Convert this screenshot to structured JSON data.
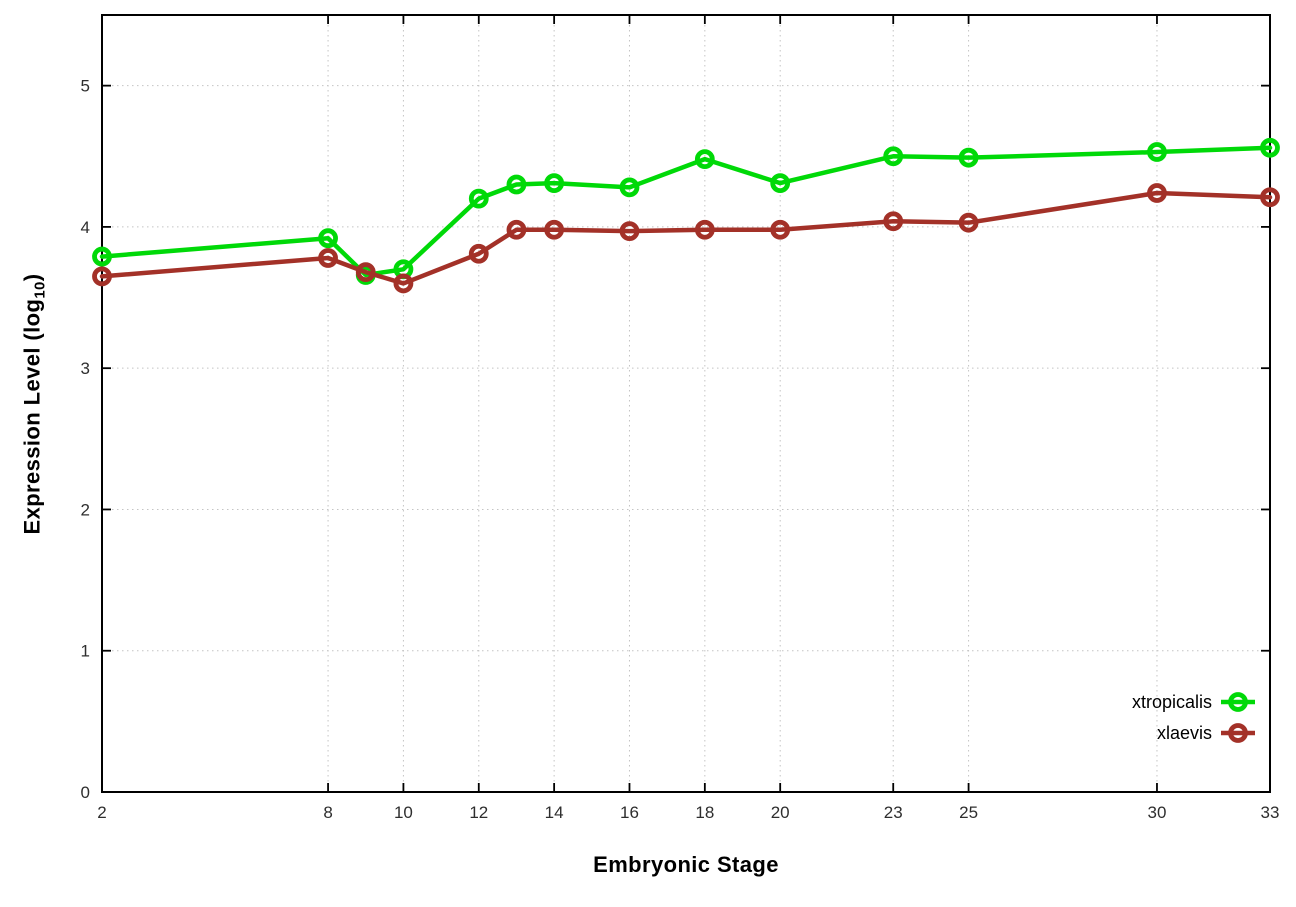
{
  "chart_data": {
    "type": "line",
    "title": "",
    "xlabel": "Embryonic Stage",
    "ylabel_prefix": "Expression Level (log",
    "ylabel_sub": "10",
    "ylabel_suffix": ")",
    "x": [
      2,
      8,
      9,
      10,
      12,
      13,
      14,
      16,
      18,
      20,
      23,
      25,
      30,
      33
    ],
    "xticks": [
      2,
      8,
      10,
      12,
      14,
      16,
      18,
      20,
      23,
      25,
      30,
      33
    ],
    "yticks": [
      0,
      1,
      2,
      3,
      4,
      5
    ],
    "xlim": [
      2,
      33
    ],
    "ylim": [
      0,
      5.5
    ],
    "grid": true,
    "legend_position": "bottom-right",
    "series": [
      {
        "name": "xtropicalis",
        "color": "#00d908",
        "values": [
          3.79,
          3.92,
          3.66,
          3.7,
          4.2,
          4.3,
          4.31,
          4.28,
          4.48,
          4.31,
          4.5,
          4.49,
          4.53,
          4.56
        ]
      },
      {
        "name": "xlaevis",
        "color": "#a33128",
        "values": [
          3.65,
          3.78,
          3.68,
          3.6,
          3.81,
          3.98,
          3.98,
          3.97,
          3.98,
          3.98,
          4.04,
          4.03,
          4.24,
          4.21
        ]
      }
    ],
    "axis_color": "#000000",
    "grid_color": "#c4c4c4",
    "tick_label_color": "#2e2e2e",
    "legend_text_color": "#000000"
  }
}
